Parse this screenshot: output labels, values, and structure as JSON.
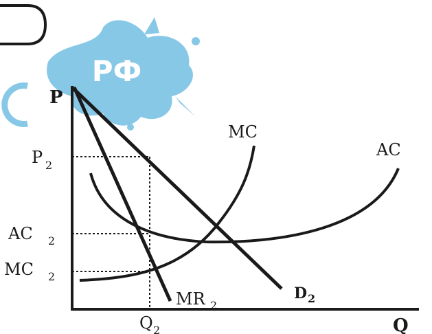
{
  "diagram": {
    "axes": {
      "y_label": "P",
      "x_label": "Q"
    },
    "price_levels": {
      "p2": "P",
      "ac2": "AC",
      "mc2": "MC",
      "q2": "Q",
      "sub": "2"
    },
    "curves": {
      "mc": "MC",
      "ac": "AC",
      "demand": "D",
      "demand_sub": "2",
      "mr": "MR",
      "mr_sub": "2"
    },
    "logo": {
      "text": "РФ"
    },
    "colors": {
      "ink": "#1a1a1a",
      "logo": "#7ec4e6"
    }
  }
}
